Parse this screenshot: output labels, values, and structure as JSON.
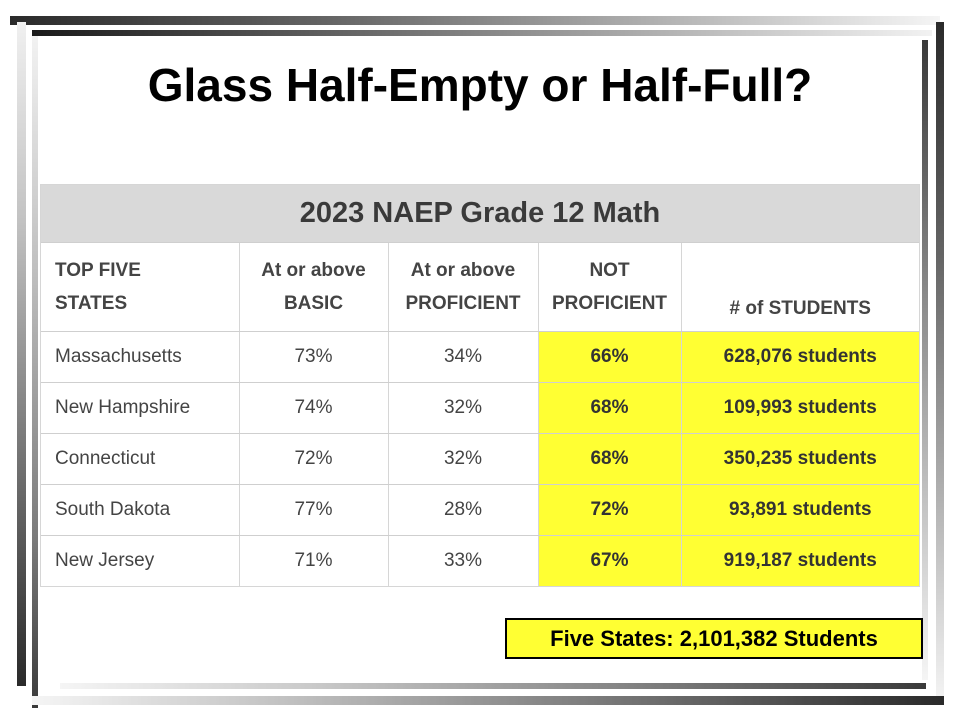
{
  "slide": {
    "title": "Glass Half-Empty or Half-Full?"
  },
  "table": {
    "caption": "2023 NAEP Grade 12 Math",
    "headers": {
      "col1_line1": "TOP FIVE",
      "col1_line2": "STATES",
      "col2_line1": "At or above",
      "col2_line2": "BASIC",
      "col3_line1": "At or above",
      "col3_line2": "PROFICIENT",
      "col4_line1": "NOT",
      "col4_line2": "PROFICIENT",
      "col5": "# of STUDENTS"
    },
    "rows": [
      {
        "state": "Massachusetts",
        "basic": "73%",
        "proficient": "34%",
        "not_proficient": "66%",
        "students": "628,076 students"
      },
      {
        "state": "New Hampshire",
        "basic": "74%",
        "proficient": "32%",
        "not_proficient": "68%",
        "students": "109,993 students"
      },
      {
        "state": "Connecticut",
        "basic": "72%",
        "proficient": "32%",
        "not_proficient": "68%",
        "students": "350,235 students"
      },
      {
        "state": "South Dakota",
        "basic": "77%",
        "proficient": "28%",
        "not_proficient": "72%",
        "students": "93,891 students"
      },
      {
        "state": "New Jersey",
        "basic": "71%",
        "proficient": "33%",
        "not_proficient": "67%",
        "students": "919,187 students"
      }
    ],
    "highlight_color": "#ffff33"
  },
  "summary": {
    "text": "Five States: 2,101,382 Students"
  }
}
